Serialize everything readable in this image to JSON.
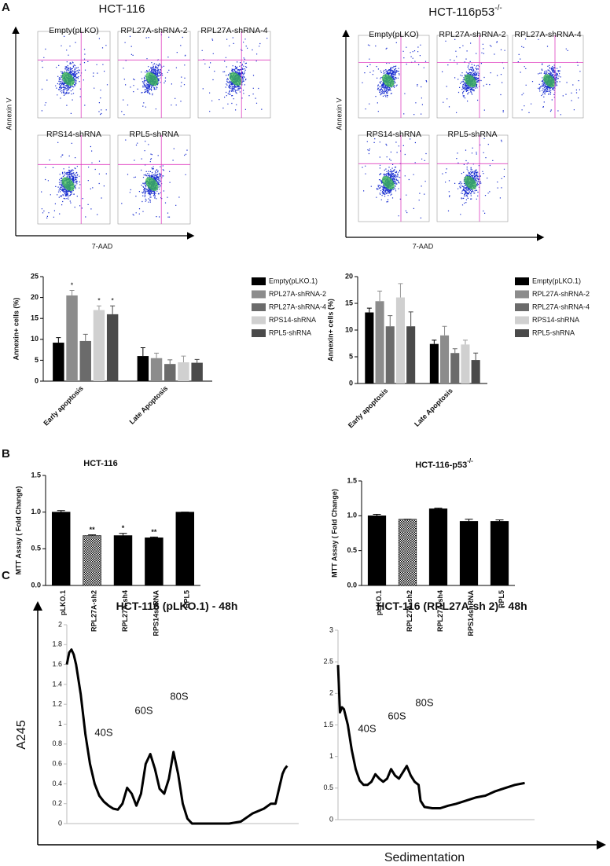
{
  "panels": [
    "A",
    "B",
    "C"
  ],
  "flow": [
    {
      "title": "HCT-116",
      "x_label": "7-AAD",
      "y_label": "Annexin V",
      "plots": [
        "Empty(pLKO)",
        "RPL27A-shRNA-2",
        "RPL27A-shRNA-4",
        "RPS14-shRNA",
        "RPL5-shRNA"
      ]
    },
    {
      "title": "HCT-116p53",
      "title_superscript": "-/-",
      "x_label": "7-AAD",
      "y_label": "Annexin V",
      "plots": [
        "Empty(pLKO)",
        "RPL27A-shRNA-2",
        "RPL27A-shRNA-4",
        "RPS14-shRNA",
        "RPL5-shRNA"
      ]
    }
  ],
  "panel_c": {
    "y_label": "A245",
    "x_label": "Sedimentation"
  },
  "chart_data": [
    {
      "type": "grouped_bar",
      "y_label": "Annexin+ cells (%)",
      "categories": [
        "Early apoptosis",
        "Late Apoptosis"
      ],
      "ylim": [
        0,
        25
      ],
      "yticks": [
        0,
        5,
        10,
        15,
        20,
        25
      ],
      "series": [
        {
          "name": "Empty(pLKO.1)",
          "color": "#000000",
          "values": [
            9.2,
            6.0
          ],
          "errors": [
            1.2,
            2.0
          ],
          "marks": [
            null,
            null
          ]
        },
        {
          "name": "RPL27A-shRNA-2",
          "color": "#8c8c8c",
          "values": [
            20.5,
            5.5
          ],
          "errors": [
            1.2,
            1.2
          ],
          "marks": [
            "*",
            null
          ]
        },
        {
          "name": "RPL27A-shRNA-4",
          "color": "#6b6b6b",
          "values": [
            9.6,
            4.1
          ],
          "errors": [
            1.6,
            1.0
          ],
          "marks": [
            null,
            null
          ]
        },
        {
          "name": "RPS14-shRNA",
          "color": "#d0d0d0",
          "values": [
            17.0,
            4.5
          ],
          "errors": [
            1.0,
            1.5
          ],
          "marks": [
            "*",
            null
          ]
        },
        {
          "name": "RPL5-shRNA",
          "color": "#4a4a4a",
          "values": [
            16.0,
            4.4
          ],
          "errors": [
            2.0,
            0.8
          ],
          "marks": [
            "*",
            null
          ]
        }
      ]
    },
    {
      "type": "grouped_bar",
      "y_label": "Annexin+ cells (%)",
      "categories": [
        "Early apoptosis",
        "Late Apoptosis"
      ],
      "ylim": [
        0,
        20
      ],
      "yticks": [
        0,
        5,
        10,
        15,
        20
      ],
      "series": [
        {
          "name": "Empty(pLKO.1)",
          "color": "#000000",
          "values": [
            13.3,
            7.4
          ],
          "errors": [
            0.8,
            0.7
          ],
          "marks": [
            null,
            null
          ]
        },
        {
          "name": "RPL27A-shRNA-2",
          "color": "#8c8c8c",
          "values": [
            15.4,
            9.0
          ],
          "errors": [
            1.9,
            1.7
          ],
          "marks": [
            null,
            null
          ]
        },
        {
          "name": "RPL27A-shRNA-4",
          "color": "#6b6b6b",
          "values": [
            10.7,
            5.7
          ],
          "errors": [
            2.0,
            0.8
          ],
          "marks": [
            null,
            null
          ]
        },
        {
          "name": "RPS14-shRNA",
          "color": "#d0d0d0",
          "values": [
            16.1,
            7.3
          ],
          "errors": [
            2.6,
            0.8
          ],
          "marks": [
            null,
            null
          ]
        },
        {
          "name": "RPL5-shRNA",
          "color": "#4a4a4a",
          "values": [
            10.7,
            4.4
          ],
          "errors": [
            2.7,
            1.3
          ],
          "marks": [
            null,
            null
          ]
        }
      ]
    },
    {
      "type": "bar",
      "title": "HCT-116",
      "y_label": "MTT Assay ( Fold Change)",
      "categories": [
        "pLKO.1",
        "RPL27A-sh2",
        "RPL27A-sh4",
        "RPS14shRNA",
        "RPL5"
      ],
      "values": [
        1.0,
        0.68,
        0.68,
        0.65,
        1.0
      ],
      "errors": [
        0.02,
        0.01,
        0.03,
        0.01,
        0
      ],
      "marks": [
        null,
        "**",
        "*",
        "**",
        null
      ],
      "hatched": [
        false,
        true,
        false,
        false,
        false
      ],
      "color": "#000000",
      "ylim": [
        0,
        1.5
      ],
      "yticks": [
        {
          "value": 0,
          "label": "0.0"
        },
        {
          "value": 0.5,
          "label": "0.5"
        },
        {
          "value": 1,
          "label": "1.0"
        },
        {
          "value": 1.5,
          "label": "1.5"
        }
      ]
    },
    {
      "type": "bar",
      "title": "HCT-116-p53",
      "title_superscript": "-/-",
      "y_label": "MTT Assay ( Fold Change)",
      "categories": [
        "pLKO.1",
        "RPL27A-sh2",
        "RPL27A-sh4",
        "RPS14shRNA",
        "RPL5"
      ],
      "values": [
        1.0,
        0.95,
        1.1,
        0.92,
        0.92
      ],
      "errors": [
        0.02,
        0,
        0.01,
        0.03,
        0.02
      ],
      "marks": [
        null,
        null,
        null,
        null,
        null
      ],
      "hatched": [
        false,
        true,
        false,
        false,
        false
      ],
      "color": "#000000",
      "ylim": [
        0,
        1.5
      ],
      "yticks": [
        {
          "value": 0,
          "label": "0.0"
        },
        {
          "value": 0.5,
          "label": "0.5"
        },
        {
          "value": 1,
          "label": "1.0"
        },
        {
          "value": 1.5,
          "label": "1.5"
        }
      ]
    },
    {
      "type": "line",
      "title": "HCT-116 (pLKO.1) - 48h",
      "color": "#000000",
      "annotations": [
        "40S",
        "60S",
        "80S"
      ],
      "xlim": [
        0,
        100
      ],
      "ylim": [
        0,
        2
      ],
      "yticks": [
        0,
        0.2,
        0.4,
        0.6,
        0.8,
        1,
        1.2,
        1.4,
        1.6,
        1.8,
        2
      ],
      "x": [
        0,
        1,
        2,
        3,
        4,
        6,
        8,
        10,
        12,
        14,
        16,
        18,
        20,
        22,
        24,
        26,
        28,
        30,
        32,
        34,
        36,
        38,
        40,
        42,
        44,
        46,
        48,
        50,
        52,
        54,
        56,
        58,
        60,
        62,
        64,
        66,
        68,
        70,
        75,
        80,
        85,
        88,
        90,
        92,
        93,
        94,
        95
      ],
      "values": [
        1.6,
        1.72,
        1.75,
        1.7,
        1.6,
        1.3,
        0.9,
        0.6,
        0.4,
        0.28,
        0.22,
        0.18,
        0.15,
        0.14,
        0.2,
        0.36,
        0.3,
        0.18,
        0.3,
        0.6,
        0.7,
        0.55,
        0.35,
        0.3,
        0.45,
        0.72,
        0.5,
        0.2,
        0.05,
        0,
        0,
        0,
        0,
        0,
        0,
        0,
        0,
        0,
        0.02,
        0.1,
        0.15,
        0.2,
        0.2,
        0.4,
        0.5,
        0.55,
        0.58
      ]
    },
    {
      "type": "line",
      "title": "HCT-116 (RPL27A-sh 2) - 48h",
      "color": "#000000",
      "annotations": [
        "40S",
        "60S",
        "80S"
      ],
      "xlim": [
        0,
        100
      ],
      "ylim": [
        0,
        3
      ],
      "yticks": [
        0,
        0.5,
        1,
        1.5,
        2,
        2.5,
        3
      ],
      "x": [
        0,
        1,
        2,
        3,
        5,
        7,
        9,
        11,
        13,
        15,
        17,
        19,
        21,
        23,
        25,
        27,
        29,
        31,
        33,
        35,
        37,
        39,
        41,
        42,
        44,
        48,
        52,
        56,
        60,
        65,
        70,
        75,
        80,
        85,
        90,
        95
      ],
      "values": [
        2.45,
        1.7,
        1.78,
        1.75,
        1.5,
        1.1,
        0.8,
        0.62,
        0.55,
        0.55,
        0.6,
        0.72,
        0.65,
        0.6,
        0.65,
        0.8,
        0.7,
        0.65,
        0.75,
        0.85,
        0.7,
        0.6,
        0.55,
        0.3,
        0.2,
        0.18,
        0.18,
        0.22,
        0.25,
        0.3,
        0.35,
        0.38,
        0.45,
        0.5,
        0.55,
        0.58
      ]
    }
  ]
}
